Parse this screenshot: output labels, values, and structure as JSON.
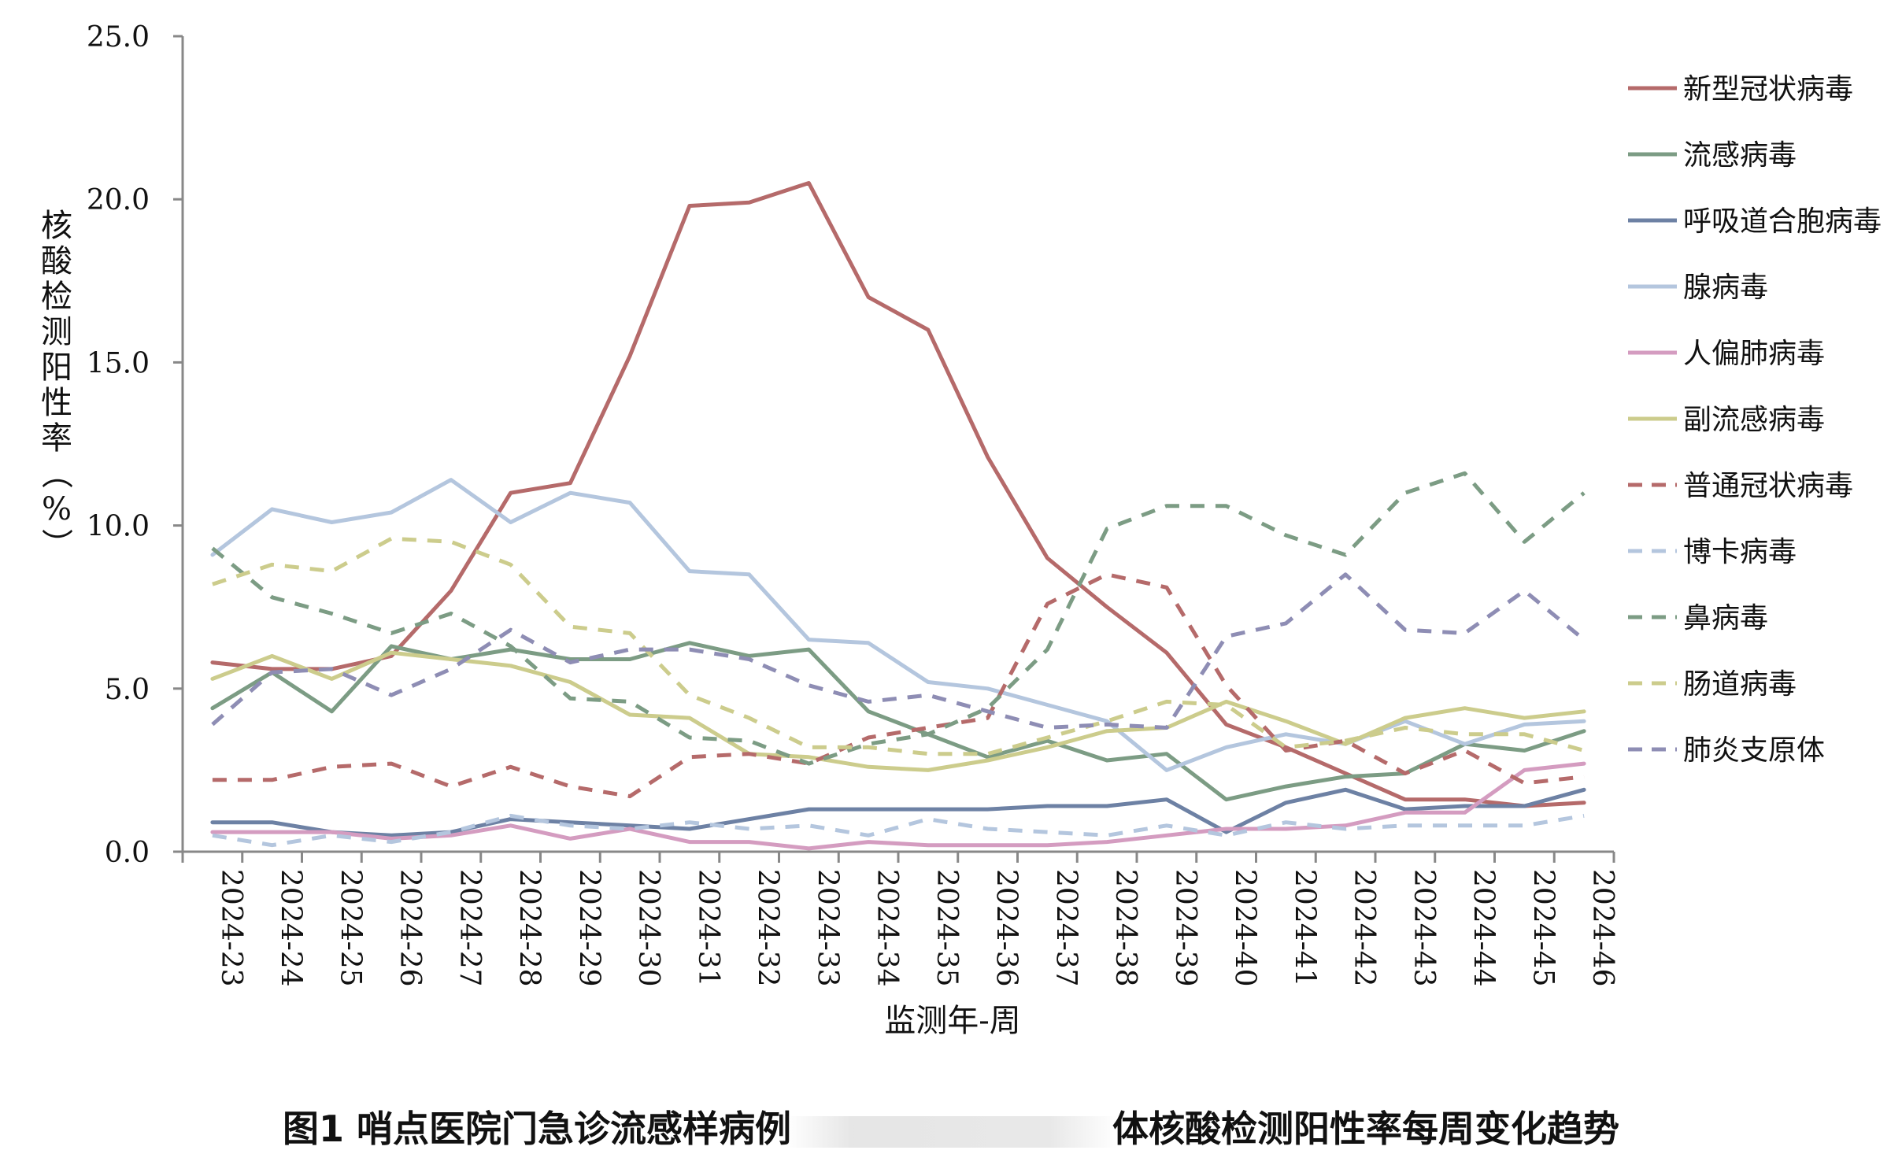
{
  "chart_data": {
    "type": "line",
    "ylabel": "核酸检测阳性率（%）",
    "xlabel": "监测年-周",
    "ylim": [
      0,
      25
    ],
    "yticks": [
      "0.0",
      "5.0",
      "10.0",
      "15.0",
      "20.0",
      "25.0"
    ],
    "grid": false,
    "legend_position": "right",
    "categories": [
      "2024-23",
      "2024-24",
      "2024-25",
      "2024-26",
      "2024-27",
      "2024-28",
      "2024-29",
      "2024-30",
      "2024-31",
      "2024-32",
      "2024-33",
      "2024-34",
      "2024-35",
      "2024-36",
      "2024-37",
      "2024-38",
      "2024-39",
      "2024-40",
      "2024-41",
      "2024-42",
      "2024-43",
      "2024-44",
      "2024-45",
      "2024-46"
    ],
    "series": [
      {
        "name": "新型冠状病毒",
        "color": "#b56a6a",
        "dash": false,
        "values": [
          5.8,
          5.6,
          5.6,
          6.0,
          8.0,
          11.0,
          11.3,
          15.2,
          19.8,
          19.9,
          20.5,
          17.0,
          16.0,
          12.1,
          9.0,
          7.5,
          6.1,
          3.9,
          3.2,
          2.4,
          1.6,
          1.6,
          1.4,
          1.5
        ]
      },
      {
        "name": "流感病毒",
        "color": "#7c9c84",
        "dash": false,
        "values": [
          4.4,
          5.5,
          4.3,
          6.3,
          5.9,
          6.2,
          5.9,
          5.9,
          6.4,
          6.0,
          6.2,
          4.3,
          3.6,
          2.9,
          3.4,
          2.8,
          3.0,
          1.6,
          2.0,
          2.3,
          2.4,
          3.3,
          3.1,
          3.7
        ]
      },
      {
        "name": "呼吸道合胞病毒",
        "color": "#6d81a4",
        "dash": false,
        "values": [
          0.9,
          0.9,
          0.6,
          0.5,
          0.6,
          1.0,
          0.9,
          0.8,
          0.7,
          1.0,
          1.3,
          1.3,
          1.3,
          1.3,
          1.4,
          1.4,
          1.6,
          0.6,
          1.5,
          1.9,
          1.3,
          1.4,
          1.4,
          1.9
        ]
      },
      {
        "name": "腺病毒",
        "color": "#b4c6de",
        "dash": false,
        "values": [
          9.1,
          10.5,
          10.1,
          10.4,
          11.4,
          10.1,
          11.0,
          10.7,
          8.6,
          8.5,
          6.5,
          6.4,
          5.2,
          5.0,
          4.5,
          4.0,
          2.5,
          3.2,
          3.6,
          3.3,
          4.0,
          3.3,
          3.9,
          4.0
        ]
      },
      {
        "name": "人偏肺病毒",
        "color": "#d49cc0",
        "dash": false,
        "values": [
          0.6,
          0.6,
          0.6,
          0.4,
          0.5,
          0.8,
          0.4,
          0.7,
          0.3,
          0.3,
          0.1,
          0.3,
          0.2,
          0.2,
          0.2,
          0.3,
          0.5,
          0.7,
          0.7,
          0.8,
          1.2,
          1.2,
          2.5,
          2.7
        ]
      },
      {
        "name": "副流感病毒",
        "color": "#cccc8c",
        "dash": false,
        "values": [
          5.3,
          6.0,
          5.3,
          6.1,
          5.9,
          5.7,
          5.2,
          4.2,
          4.1,
          3.0,
          2.9,
          2.6,
          2.5,
          2.8,
          3.2,
          3.7,
          3.8,
          4.6,
          4.0,
          3.3,
          4.1,
          4.4,
          4.1,
          4.3
        ]
      },
      {
        "name": "普通冠状病毒",
        "color": "#b56a6a",
        "dash": true,
        "values": [
          2.2,
          2.2,
          2.6,
          2.7,
          2.0,
          2.6,
          2.0,
          1.7,
          2.9,
          3.0,
          2.7,
          3.5,
          3.8,
          4.1,
          7.6,
          8.5,
          8.1,
          5.1,
          3.1,
          3.4,
          2.4,
          3.1,
          2.1,
          2.3
        ]
      },
      {
        "name": "博卡病毒",
        "color": "#b4c6de",
        "dash": true,
        "values": [
          0.5,
          0.2,
          0.5,
          0.3,
          0.6,
          1.1,
          0.8,
          0.7,
          0.9,
          0.7,
          0.8,
          0.5,
          1.0,
          0.7,
          0.6,
          0.5,
          0.8,
          0.5,
          0.9,
          0.7,
          0.8,
          0.8,
          0.8,
          1.1
        ]
      },
      {
        "name": "鼻病毒",
        "color": "#7c9c84",
        "dash": true,
        "values": [
          9.3,
          7.8,
          7.3,
          6.7,
          7.3,
          6.3,
          4.7,
          4.6,
          3.5,
          3.4,
          2.7,
          3.3,
          3.6,
          4.4,
          6.2,
          9.9,
          10.6,
          10.6,
          9.7,
          9.1,
          11.0,
          11.6,
          9.5,
          11.0
        ]
      },
      {
        "name": "肠道病毒",
        "color": "#cccc8c",
        "dash": true,
        "values": [
          8.2,
          8.8,
          8.6,
          9.6,
          9.5,
          8.8,
          6.9,
          6.7,
          4.8,
          4.1,
          3.2,
          3.2,
          3.0,
          3.0,
          3.5,
          4.0,
          4.6,
          4.5,
          3.2,
          3.4,
          3.8,
          3.6,
          3.6,
          3.1
        ]
      },
      {
        "name": "肺炎支原体",
        "color": "#8e8db4",
        "dash": true,
        "values": [
          3.9,
          5.5,
          5.6,
          4.8,
          5.6,
          6.8,
          5.8,
          6.2,
          6.2,
          5.9,
          5.1,
          4.6,
          4.8,
          4.3,
          3.8,
          3.9,
          3.8,
          6.6,
          7.0,
          8.5,
          6.8,
          6.7,
          8.0,
          6.5
        ]
      }
    ]
  },
  "caption": {
    "before": "图1 哨点医院门急诊流感样病例",
    "after": "体核酸检测阳性率每周变化趋势"
  }
}
